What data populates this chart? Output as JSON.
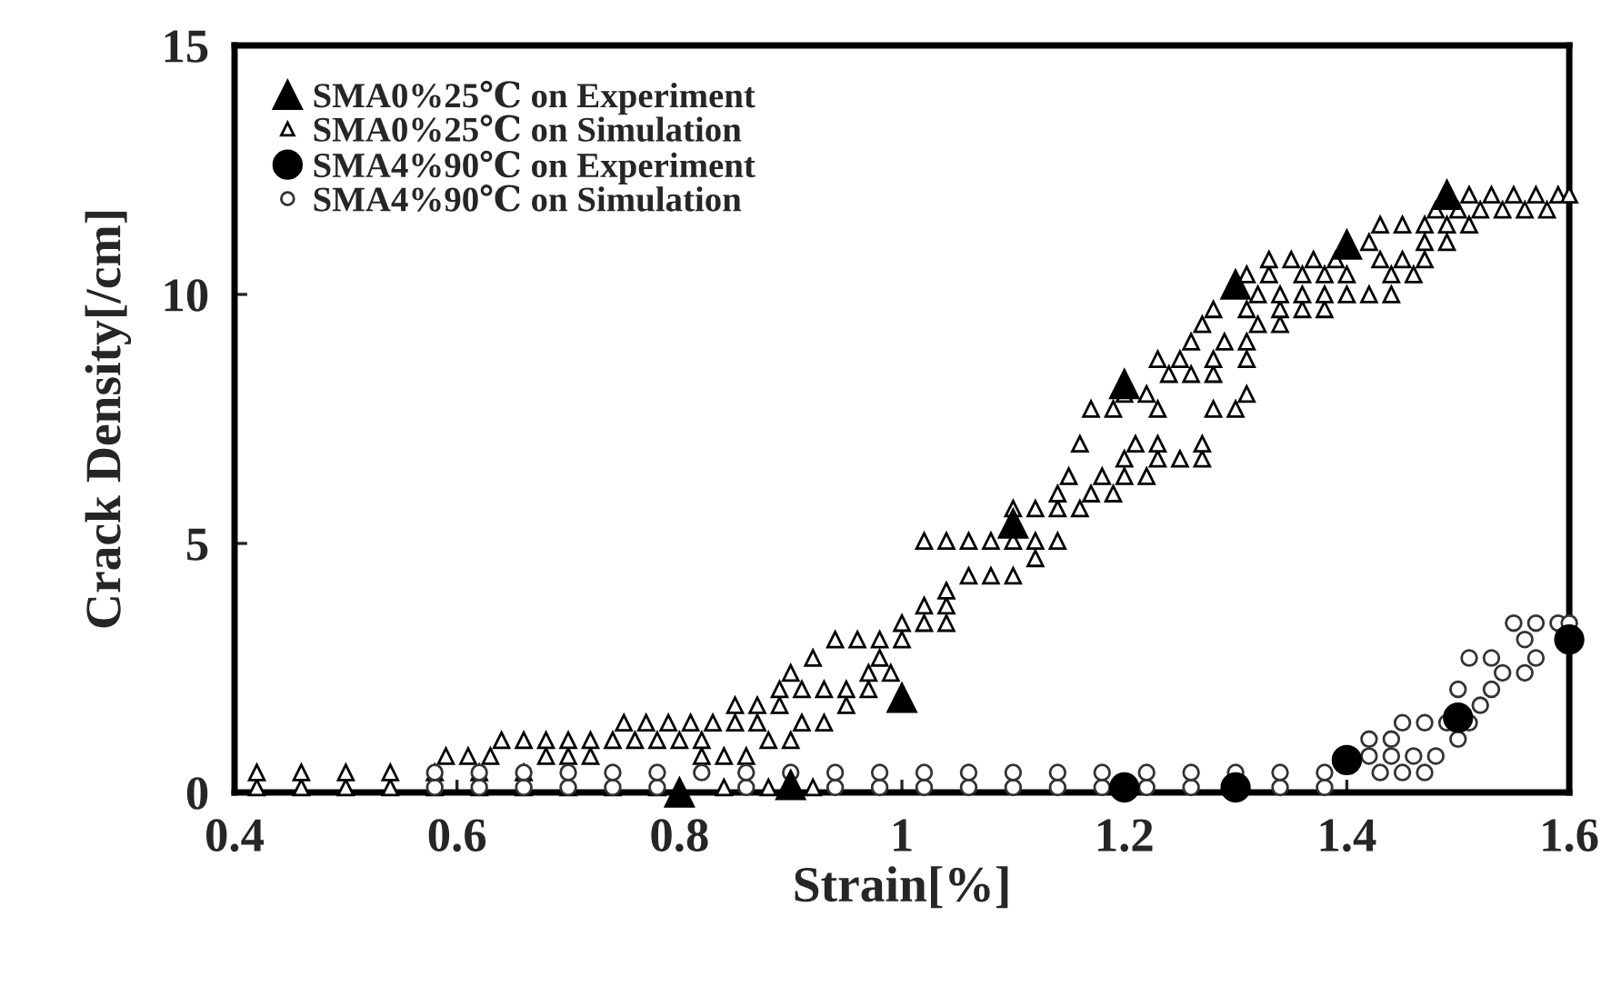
{
  "chart_data": {
    "type": "scatter",
    "xlabel": "Strain[%]",
    "ylabel": "Crack Density[/cm]",
    "xlim": [
      0.4,
      1.6
    ],
    "xticks": [
      0.4,
      0.6,
      0.8,
      1,
      1.2,
      1.4,
      1.6
    ],
    "ylim": [
      0,
      15
    ],
    "yticks": [
      0,
      5,
      10,
      15
    ],
    "grid": false,
    "legend": "top left",
    "series": [
      {
        "name": "SMA0%25℃ on Experiment",
        "color": "#000000",
        "marker": "triangle",
        "x": [
          0.8,
          0.9,
          1.0,
          1.1,
          1.2,
          1.3,
          1.4,
          1.49
        ],
        "values": [
          0,
          0.15,
          1.9,
          5.4,
          8.2,
          10.2,
          11.0,
          12.0
        ]
      },
      {
        "name": "SMA0%25℃ on Simulation",
        "color": "#000000",
        "marker": "triangle",
        "x": [
          0.42,
          0.46,
          0.5,
          0.54,
          0.58,
          0.62,
          0.66,
          0.7,
          0.74,
          0.78,
          0.84,
          0.88,
          0.92,
          0.42,
          0.46,
          0.5,
          0.54,
          0.58,
          0.62,
          0.66,
          0.59,
          0.61,
          0.63,
          0.68,
          0.7,
          0.72,
          0.82,
          0.84,
          0.86,
          0.64,
          0.66,
          0.68,
          0.7,
          0.72,
          0.74,
          0.76,
          0.78,
          0.8,
          0.82,
          0.88,
          0.9,
          0.75,
          0.77,
          0.79,
          0.81,
          0.83,
          0.85,
          0.87,
          0.91,
          0.93,
          0.85,
          0.87,
          0.89,
          0.95,
          0.89,
          0.91,
          0.93,
          0.95,
          0.97,
          0.9,
          0.97,
          0.99,
          0.92,
          0.98,
          0.94,
          0.96,
          0.98,
          1.0,
          1.0,
          1.02,
          1.04,
          1.02,
          1.04,
          1.04,
          1.06,
          1.08,
          1.1,
          1.12,
          1.02,
          1.04,
          1.06,
          1.08,
          1.1,
          1.12,
          1.14,
          1.1,
          1.12,
          1.14,
          1.16,
          1.14,
          1.17,
          1.19,
          1.15,
          1.18,
          1.2,
          1.22,
          1.2,
          1.23,
          1.25,
          1.27,
          1.16,
          1.21,
          1.23,
          1.27,
          1.17,
          1.19,
          1.23,
          1.28,
          1.3,
          1.2,
          1.22,
          1.31,
          1.24,
          1.26,
          1.28,
          1.23,
          1.25,
          1.28,
          1.31,
          1.26,
          1.29,
          1.31,
          1.27,
          1.32,
          1.34,
          1.28,
          1.31,
          1.34,
          1.36,
          1.38,
          1.32,
          1.34,
          1.36,
          1.38,
          1.4,
          1.42,
          1.44,
          1.31,
          1.33,
          1.36,
          1.38,
          1.4,
          1.44,
          1.46,
          1.33,
          1.35,
          1.37,
          1.39,
          1.43,
          1.45,
          1.47,
          1.42,
          1.47,
          1.49,
          1.43,
          1.45,
          1.47,
          1.49,
          1.51,
          1.48,
          1.5,
          1.52,
          1.54,
          1.56,
          1.58,
          1.51,
          1.53,
          1.55,
          1.57,
          1.59,
          1.6
        ],
        "values": [
          0.1,
          0.1,
          0.1,
          0.1,
          0.1,
          0.1,
          0.1,
          0.1,
          0.1,
          0.1,
          0.1,
          0.1,
          0.1,
          0.4,
          0.4,
          0.4,
          0.4,
          0.4,
          0.4,
          0.4,
          0.73,
          0.73,
          0.73,
          0.73,
          0.73,
          0.73,
          0.73,
          0.73,
          0.73,
          1.05,
          1.05,
          1.05,
          1.05,
          1.05,
          1.05,
          1.05,
          1.05,
          1.05,
          1.05,
          1.05,
          1.05,
          1.4,
          1.4,
          1.4,
          1.4,
          1.4,
          1.4,
          1.4,
          1.4,
          1.4,
          1.75,
          1.75,
          1.75,
          1.75,
          2.07,
          2.07,
          2.07,
          2.07,
          2.07,
          2.4,
          2.4,
          2.4,
          2.7,
          2.7,
          3.07,
          3.07,
          3.07,
          3.07,
          3.4,
          3.4,
          3.4,
          3.75,
          3.75,
          4.05,
          4.35,
          4.35,
          4.35,
          4.7,
          5.05,
          5.05,
          5.05,
          5.05,
          5.05,
          5.05,
          5.05,
          5.7,
          5.7,
          5.7,
          5.7,
          6.0,
          6.0,
          6.0,
          6.35,
          6.35,
          6.35,
          6.35,
          6.7,
          6.7,
          6.7,
          6.7,
          7.0,
          7.0,
          7.0,
          7.0,
          7.7,
          7.7,
          7.7,
          7.7,
          7.7,
          8.0,
          8.0,
          8.0,
          8.4,
          8.4,
          8.4,
          8.7,
          8.7,
          8.7,
          8.7,
          9.05,
          9.05,
          9.05,
          9.4,
          9.4,
          9.4,
          9.7,
          9.7,
          9.7,
          9.7,
          9.7,
          10.0,
          10.0,
          10.0,
          10.0,
          10.0,
          10.0,
          10.0,
          10.4,
          10.4,
          10.4,
          10.4,
          10.4,
          10.4,
          10.4,
          10.7,
          10.7,
          10.7,
          10.7,
          10.7,
          10.7,
          10.7,
          11.05,
          11.05,
          11.05,
          11.4,
          11.4,
          11.4,
          11.4,
          11.4,
          11.7,
          11.7,
          11.7,
          11.7,
          11.7,
          11.7,
          12.0,
          12.0,
          12.0,
          12.0,
          12.0,
          12.0
        ]
      },
      {
        "name": "SMA4%90℃ on Experiment",
        "color": "#000000",
        "marker": "circle",
        "x": [
          1.2,
          1.3,
          1.4,
          1.5,
          1.6
        ],
        "values": [
          0.1,
          0.1,
          0.65,
          1.5,
          3.07
        ]
      },
      {
        "name": "SMA4%90℃ on Simulation",
        "color": "#333333",
        "marker": "circle",
        "x": [
          0.58,
          0.62,
          0.66,
          0.7,
          0.74,
          0.78,
          0.86,
          0.94,
          0.98,
          1.02,
          1.06,
          1.1,
          1.14,
          1.18,
          1.22,
          1.26,
          1.34,
          1.38,
          0.58,
          0.62,
          0.66,
          0.7,
          0.74,
          0.78,
          0.82,
          0.86,
          0.9,
          0.94,
          0.98,
          1.02,
          1.06,
          1.1,
          1.14,
          1.18,
          1.22,
          1.26,
          1.3,
          1.34,
          1.38,
          1.43,
          1.45,
          1.47,
          1.42,
          1.44,
          1.46,
          1.48,
          1.42,
          1.44,
          1.5,
          1.45,
          1.47,
          1.49,
          1.51,
          1.52,
          1.5,
          1.53,
          1.54,
          1.56,
          1.51,
          1.53,
          1.57,
          1.56,
          1.55,
          1.57,
          1.59,
          1.6
        ],
        "values": [
          0.1,
          0.1,
          0.1,
          0.1,
          0.1,
          0.1,
          0.1,
          0.1,
          0.1,
          0.1,
          0.1,
          0.1,
          0.1,
          0.1,
          0.1,
          0.1,
          0.1,
          0.1,
          0.4,
          0.4,
          0.4,
          0.4,
          0.4,
          0.4,
          0.4,
          0.4,
          0.4,
          0.4,
          0.4,
          0.4,
          0.4,
          0.4,
          0.4,
          0.4,
          0.4,
          0.4,
          0.4,
          0.4,
          0.4,
          0.4,
          0.4,
          0.4,
          0.73,
          0.73,
          0.73,
          0.73,
          1.07,
          1.07,
          1.07,
          1.4,
          1.4,
          1.4,
          1.4,
          1.75,
          2.07,
          2.07,
          2.4,
          2.4,
          2.7,
          2.7,
          2.7,
          3.07,
          3.4,
          3.4,
          3.4,
          3.4
        ]
      }
    ]
  }
}
